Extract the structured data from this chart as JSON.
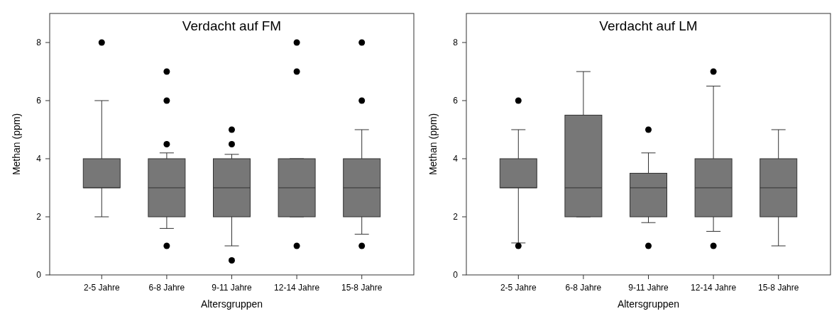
{
  "chart_data": [
    {
      "type": "box",
      "title": "Verdacht auf FM",
      "xlabel": "Altersgruppen",
      "ylabel": "Methan (ppm)",
      "categories": [
        "2-5 Jahre",
        "6-8 Jahre",
        "9-11 Jahre",
        "12-14 Jahre",
        "15-8 Jahre"
      ],
      "ylim": [
        0,
        9
      ],
      "yticks": [
        0,
        2,
        4,
        6,
        8
      ],
      "color": "#777777",
      "boxes": [
        {
          "low": 2,
          "q1": 3,
          "median": 3,
          "q3": 4,
          "high": 6,
          "outliers": [
            8
          ]
        },
        {
          "low": 1.6,
          "q1": 2,
          "median": 3,
          "q3": 4,
          "high": 4.2,
          "outliers": [
            1,
            4.5,
            6,
            7
          ]
        },
        {
          "low": 1,
          "q1": 2,
          "median": 3,
          "q3": 4,
          "high": 4.15,
          "outliers": [
            0.5,
            4.5,
            5
          ]
        },
        {
          "low": 2,
          "q1": 2,
          "median": 3,
          "q3": 4,
          "high": 4,
          "outliers": [
            1,
            7,
            8
          ]
        },
        {
          "low": 1.4,
          "q1": 2,
          "median": 3,
          "q3": 4,
          "high": 5,
          "outliers": [
            1,
            6,
            8
          ]
        }
      ]
    },
    {
      "type": "box",
      "title": "Verdacht auf LM",
      "xlabel": "Altersgruppen",
      "ylabel": "Methan (ppm)",
      "categories": [
        "2-5 Jahre",
        "6-8 Jahre",
        "9-11 Jahre",
        "12-14 Jahre",
        "15-8 Jahre"
      ],
      "ylim": [
        0,
        9
      ],
      "yticks": [
        0,
        2,
        4,
        6,
        8
      ],
      "color": "#777777",
      "boxes": [
        {
          "low": 1.1,
          "q1": 3,
          "median": 3,
          "q3": 4,
          "high": 5,
          "outliers": [
            1,
            6
          ]
        },
        {
          "low": 2,
          "q1": 2,
          "median": 3,
          "q3": 5.5,
          "high": 7
        },
        {
          "low": 1.8,
          "q1": 2,
          "median": 3,
          "q3": 3.5,
          "high": 4.2,
          "outliers": [
            1,
            5
          ]
        },
        {
          "low": 1.5,
          "q1": 2,
          "median": 3,
          "q3": 4,
          "high": 6.5,
          "outliers": [
            1,
            7
          ]
        },
        {
          "low": 1,
          "q1": 2,
          "median": 3,
          "q3": 4,
          "high": 5
        }
      ]
    }
  ]
}
